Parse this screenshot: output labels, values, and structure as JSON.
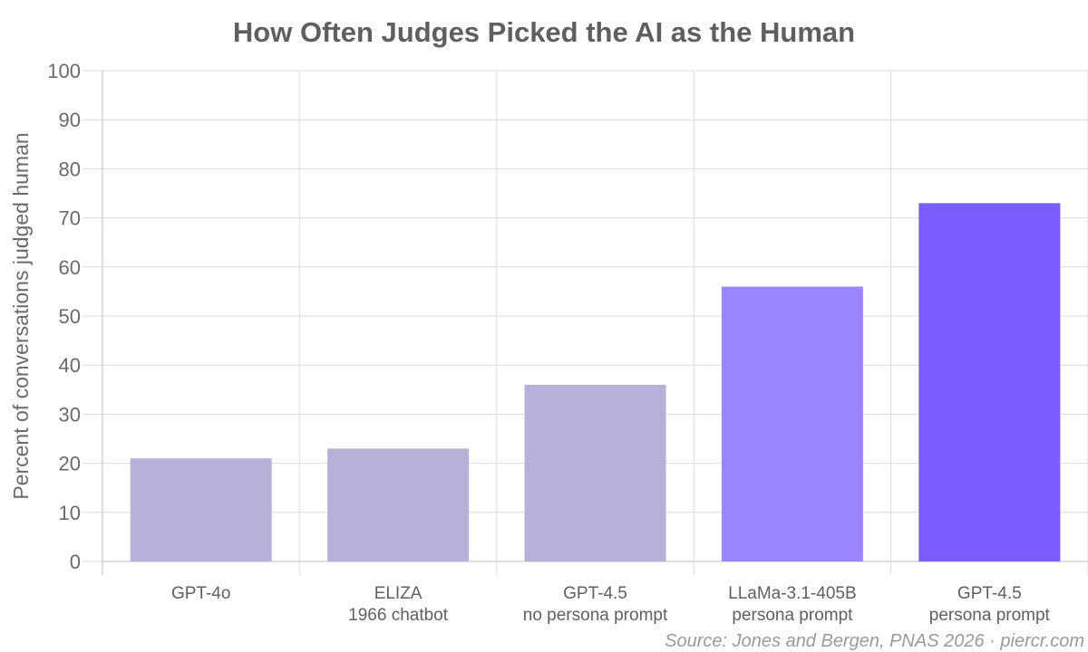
{
  "chart_data": {
    "type": "bar",
    "title": "How Often Judges Picked the AI as the Human",
    "ylabel": "Percent of conversations judged human",
    "xlabel": "",
    "ylim": [
      0,
      100
    ],
    "yticks": [
      0,
      10,
      20,
      30,
      40,
      50,
      60,
      70,
      80,
      90,
      100
    ],
    "grid": true,
    "categories": [
      [
        "GPT-4o"
      ],
      [
        "ELIZA",
        "1966 chatbot"
      ],
      [
        "GPT-4.5",
        "no persona prompt"
      ],
      [
        "LLaMa-3.1-405B",
        "persona prompt"
      ],
      [
        "GPT-4.5",
        "persona prompt"
      ]
    ],
    "values": [
      21,
      23,
      36,
      56,
      73
    ],
    "bar_colors": [
      "#b7b0d9",
      "#b7b0d9",
      "#b7b0d9",
      "#9b85ff",
      "#7d5cff"
    ],
    "source": "Source: Jones and Bergen, PNAS 2026 · piercr.com"
  }
}
